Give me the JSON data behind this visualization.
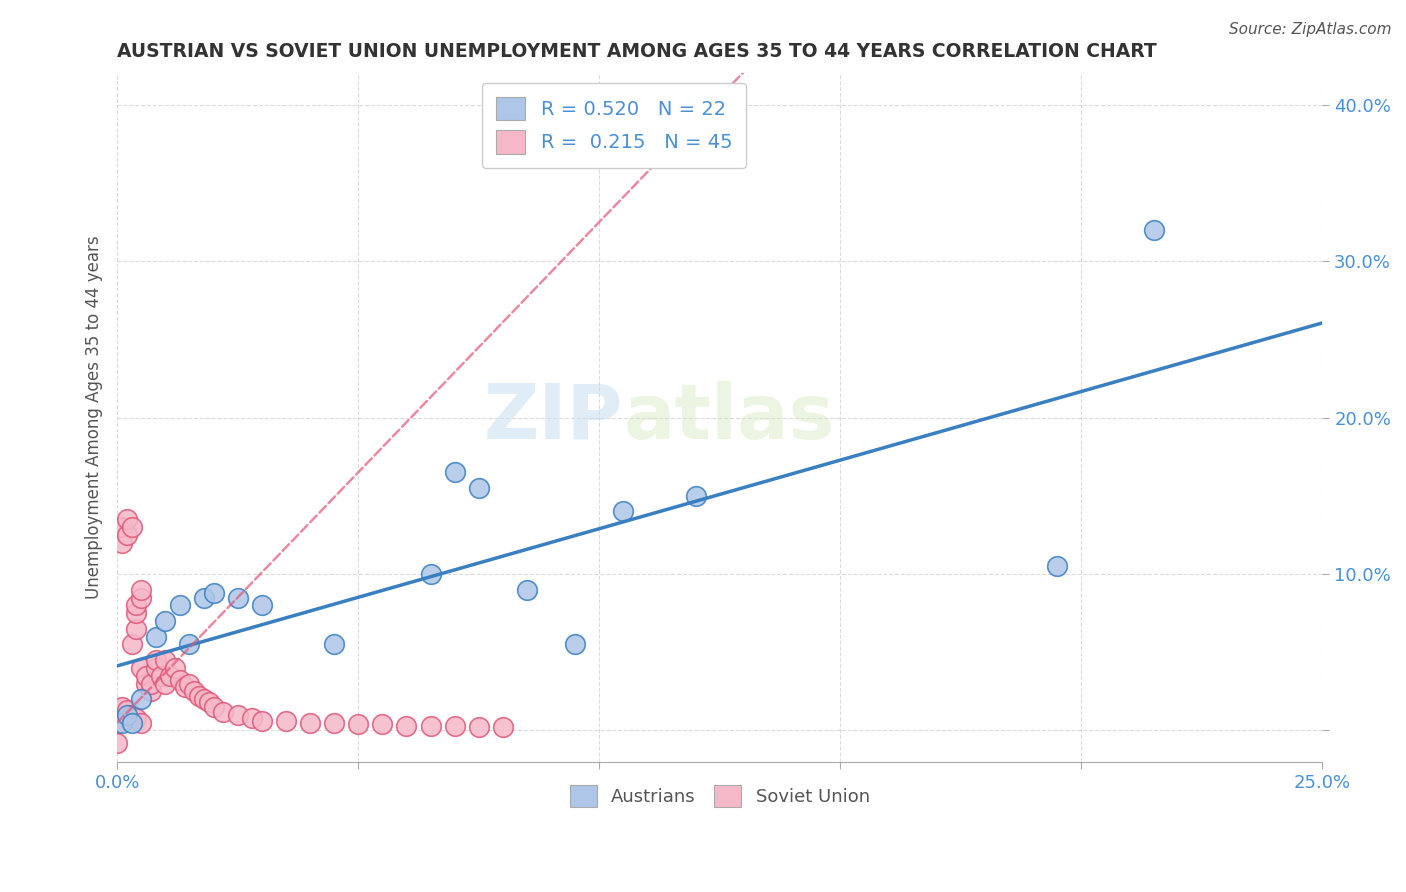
{
  "title": "AUSTRIAN VS SOVIET UNION UNEMPLOYMENT AMONG AGES 35 TO 44 YEARS CORRELATION CHART",
  "source": "Source: ZipAtlas.com",
  "ylabel": "Unemployment Among Ages 35 to 44 years",
  "xlim": [
    0.0,
    0.25
  ],
  "ylim": [
    -0.02,
    0.42
  ],
  "legend_R_austrians": "0.520",
  "legend_N_austrians": "22",
  "legend_R_soviet": "0.215",
  "legend_N_soviet": "45",
  "watermark_zip": "ZIP",
  "watermark_atlas": "atlas",
  "austrians_color": "#aec6e8",
  "austrians_line_color": "#3a7fc1",
  "soviet_color": "#f5b8c8",
  "soviet_line_color": "#e05878",
  "background_color": "#ffffff",
  "grid_color": "#cccccc",
  "austrians_x": [
    0.001,
    0.002,
    0.003,
    0.005,
    0.008,
    0.01,
    0.013,
    0.015,
    0.018,
    0.02,
    0.025,
    0.03,
    0.045,
    0.065,
    0.07,
    0.075,
    0.085,
    0.095,
    0.105,
    0.12,
    0.195,
    0.215
  ],
  "austrians_y": [
    0.005,
    0.01,
    0.005,
    0.02,
    0.06,
    0.07,
    0.08,
    0.055,
    0.085,
    0.088,
    0.085,
    0.08,
    0.055,
    0.1,
    0.165,
    0.155,
    0.09,
    0.055,
    0.14,
    0.15,
    0.105,
    0.32
  ],
  "soviet_x": [
    0.001,
    0.001,
    0.002,
    0.002,
    0.003,
    0.003,
    0.004,
    0.004,
    0.004,
    0.005,
    0.005,
    0.005,
    0.006,
    0.006,
    0.007,
    0.007,
    0.008,
    0.008,
    0.009,
    0.01,
    0.01,
    0.011,
    0.012,
    0.013,
    0.014,
    0.015,
    0.016,
    0.017,
    0.018,
    0.019,
    0.02,
    0.022,
    0.025,
    0.028,
    0.03,
    0.035,
    0.04,
    0.045,
    0.05,
    0.055,
    0.06,
    0.065,
    0.07,
    0.075,
    0.08
  ],
  "soviet_y": [
    0.12,
    0.13,
    0.125,
    0.135,
    0.055,
    0.13,
    0.065,
    0.075,
    0.08,
    0.04,
    0.085,
    0.09,
    0.03,
    0.035,
    0.025,
    0.03,
    0.04,
    0.045,
    0.035,
    0.03,
    0.045,
    0.035,
    0.04,
    0.032,
    0.028,
    0.03,
    0.025,
    0.022,
    0.02,
    0.018,
    0.015,
    0.012,
    0.01,
    0.008,
    0.006,
    0.006,
    0.005,
    0.005,
    0.004,
    0.004,
    0.003,
    0.003,
    0.003,
    0.002,
    0.002
  ],
  "soviet_extra_x": [
    0.0,
    0.0,
    0.001,
    0.002,
    0.003,
    0.004,
    0.005
  ],
  "soviet_extra_y": [
    0.005,
    -0.008,
    0.015,
    0.013,
    0.01,
    0.008,
    0.005
  ]
}
